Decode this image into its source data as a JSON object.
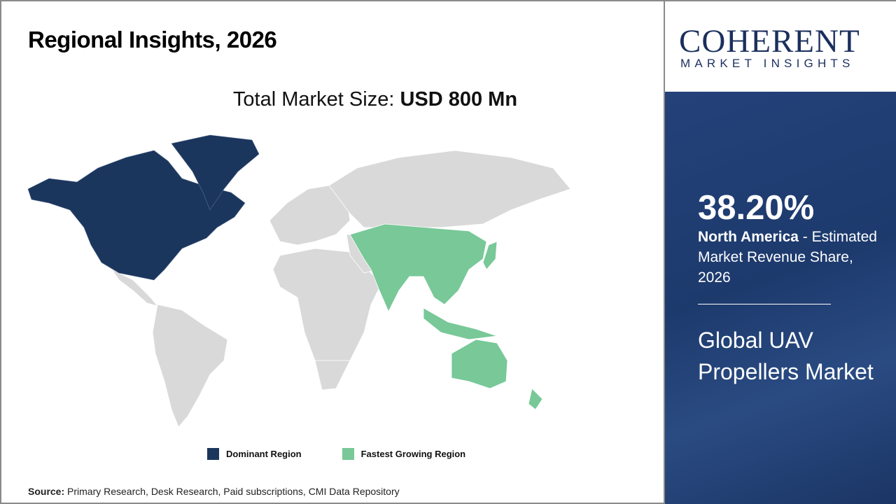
{
  "title": "Regional Insights, 2026",
  "market_size": {
    "label": "Total Market Size: ",
    "value": "USD 800 Mn"
  },
  "legend": [
    {
      "label": "Dominant Region",
      "color": "#1b365d"
    },
    {
      "label": "Fastest Growing Region",
      "color": "#78c898"
    }
  ],
  "map": {
    "dominant_region": "North America",
    "fastest_growing_region": "Asia Pacific",
    "other_color": "#d9d9d9"
  },
  "source": {
    "label": "Source:",
    "text": " Primary Research, Desk Research, Paid subscriptions, CMI Data Repository"
  },
  "logo": {
    "name": "COHERENT",
    "tagline": "MARKET INSIGHTS"
  },
  "highlight": {
    "percent": "38.20%",
    "region": "North America",
    "description": " - Estimated Market Revenue Share, 2026"
  },
  "product": "Global UAV Propellers Market"
}
